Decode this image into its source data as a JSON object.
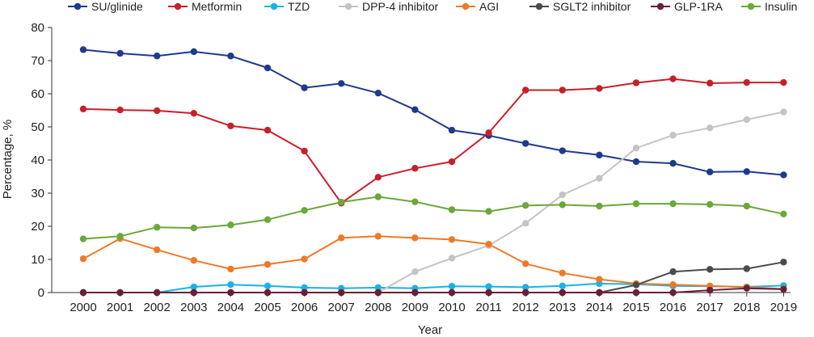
{
  "chart_data": {
    "type": "line",
    "title": "",
    "xlabel": "Year",
    "ylabel": "Percentage, %",
    "ylim": [
      0,
      80
    ],
    "yticks": [
      0,
      10,
      20,
      30,
      40,
      50,
      60,
      70,
      80
    ],
    "grid": false,
    "legend_position": "top",
    "x": [
      "2000",
      "2001",
      "2002",
      "2003",
      "2004",
      "2005",
      "2006",
      "2007",
      "2008",
      "2009",
      "2010",
      "2011",
      "2012",
      "2013",
      "2014",
      "2015",
      "2016",
      "2017",
      "2018",
      "2019"
    ],
    "series": [
      {
        "name": "SU/glinide",
        "color": "#1f3a8a",
        "values": [
          73.3,
          72.2,
          71.4,
          72.7,
          71.4,
          67.8,
          61.8,
          63.1,
          60.2,
          55.2,
          49.0,
          47.4,
          45.0,
          42.8,
          41.5,
          39.5,
          39.0,
          36.4,
          36.5,
          35.5
        ]
      },
      {
        "name": "Metformin",
        "color": "#c8202a",
        "values": [
          55.4,
          55.1,
          54.9,
          54.1,
          50.3,
          49.0,
          42.7,
          27.0,
          34.8,
          37.5,
          39.5,
          48.2,
          61.1,
          61.1,
          61.6,
          63.3,
          64.5,
          63.2,
          63.4,
          63.4
        ]
      },
      {
        "name": "TZD",
        "color": "#1ab2e6",
        "values": [
          0,
          0,
          0,
          1.7,
          2.4,
          2.0,
          1.5,
          1.3,
          1.5,
          1.3,
          1.9,
          1.8,
          1.6,
          2.0,
          2.7,
          2.5,
          2.0,
          1.9,
          1.7,
          2.1
        ]
      },
      {
        "name": "DPP-4 inhibitor",
        "color": "#c4c4c4",
        "values": [
          0,
          0,
          0,
          0,
          0,
          0,
          0,
          0,
          0,
          6.3,
          10.4,
          14.2,
          20.9,
          29.5,
          34.5,
          43.6,
          47.5,
          49.7,
          52.2,
          54.5
        ]
      },
      {
        "name": "AGI",
        "color": "#ee7a28",
        "values": [
          10.2,
          16.3,
          12.9,
          9.7,
          7.1,
          8.5,
          10.1,
          16.5,
          17.0,
          16.5,
          16.0,
          14.6,
          8.7,
          5.9,
          4.0,
          2.7,
          2.4,
          2.0,
          1.6,
          1.1
        ]
      },
      {
        "name": "SGLT2 inhibitor",
        "color": "#4b4b4b",
        "values": [
          0,
          0,
          0,
          0,
          0,
          0,
          0,
          0,
          0,
          0,
          0,
          0,
          0,
          0,
          0,
          2.3,
          6.3,
          7.0,
          7.2,
          9.2
        ]
      },
      {
        "name": "GLP-1RA",
        "color": "#6b1f35",
        "values": [
          0,
          0,
          0,
          0,
          0,
          0,
          0,
          0,
          0,
          0,
          0,
          0,
          0,
          0,
          0,
          0,
          0,
          0.7,
          1.3,
          1.0
        ]
      },
      {
        "name": "Insulin",
        "color": "#6aa83a",
        "values": [
          16.2,
          17.0,
          19.7,
          19.5,
          20.4,
          22.0,
          24.8,
          27.3,
          28.9,
          27.4,
          25.0,
          24.5,
          26.3,
          26.5,
          26.1,
          26.8,
          26.8,
          26.6,
          26.1,
          23.7
        ]
      }
    ]
  }
}
